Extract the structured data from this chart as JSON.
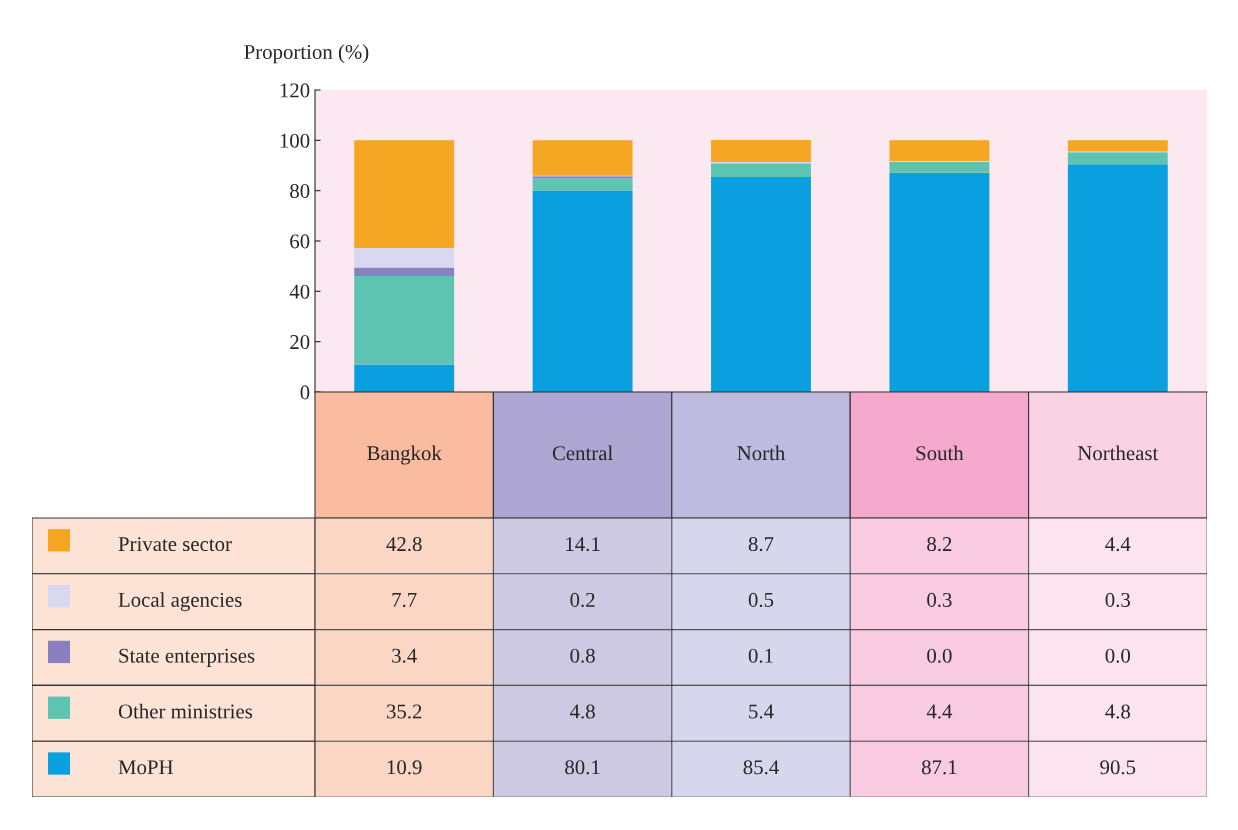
{
  "chart_data": {
    "type": "bar",
    "stacked": true,
    "ylabel": "Proportion (%)",
    "categories": [
      "Bangkok",
      "Central",
      "North",
      "South",
      "Northeast"
    ],
    "series": [
      {
        "name": "MoPH",
        "color": "#0aa0e0",
        "values": [
          10.9,
          80.1,
          85.4,
          87.1,
          90.5
        ],
        "value_labels": [
          "10.9",
          "80.1",
          "85.4",
          "87.1",
          "90.5"
        ]
      },
      {
        "name": "Other ministries",
        "color": "#5cc4b0",
        "values": [
          35.2,
          4.8,
          5.4,
          4.4,
          4.8
        ],
        "value_labels": [
          "35.2",
          "4.8",
          "5.4",
          "4.4",
          "4.8"
        ]
      },
      {
        "name": "State enterprises",
        "color": "#8a80c0",
        "values": [
          3.4,
          0.8,
          0.1,
          0.0,
          0.0
        ],
        "value_labels": [
          "3.4",
          "0.8",
          "0.1",
          "0.0",
          "0.0"
        ]
      },
      {
        "name": "Local agencies",
        "color": "#d8d8f0",
        "values": [
          7.7,
          0.2,
          0.5,
          0.3,
          0.3
        ],
        "value_labels": [
          "7.7",
          "0.2",
          "0.5",
          "0.3",
          "0.3"
        ]
      },
      {
        "name": "Private sector",
        "color": "#f5a623",
        "values": [
          42.8,
          14.1,
          8.7,
          8.2,
          4.4
        ],
        "value_labels": [
          "42.8",
          "14.1",
          "8.7",
          "8.2",
          "4.4"
        ]
      }
    ],
    "ylim": [
      0,
      120
    ],
    "yticks": [
      0,
      20,
      40,
      60,
      80,
      100,
      120
    ],
    "legend": "bottom left",
    "grid": false
  }
}
